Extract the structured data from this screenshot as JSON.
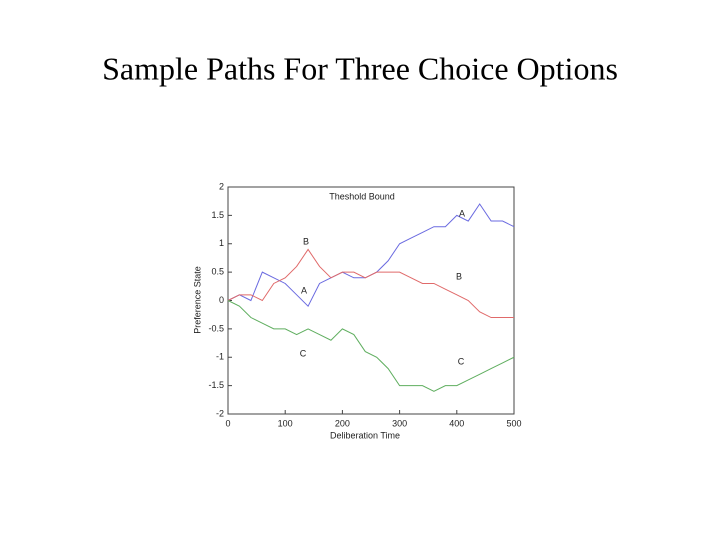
{
  "chart_data": {
    "type": "line",
    "title": "Sample Paths For Three Choice Options",
    "xlabel": "Deliberation Time",
    "ylabel": "Preference State",
    "annotations": [
      "Theshold  Bound",
      "A",
      "B",
      "A",
      "B",
      "C",
      "C"
    ],
    "x": [
      0,
      20,
      40,
      60,
      80,
      100,
      120,
      140,
      160,
      180,
      200,
      220,
      240,
      260,
      280,
      300,
      320,
      340,
      360,
      380,
      400,
      420,
      440,
      460,
      480,
      500
    ],
    "series": [
      {
        "name": "A",
        "color": "#6a6ae0",
        "values": [
          0,
          0.1,
          0.0,
          0.5,
          0.4,
          0.3,
          0.1,
          -0.1,
          0.3,
          0.4,
          0.5,
          0.4,
          0.4,
          0.5,
          0.7,
          1.0,
          1.1,
          1.2,
          1.3,
          1.3,
          1.5,
          1.4,
          1.7,
          1.4,
          1.4,
          1.3
        ]
      },
      {
        "name": "B",
        "color": "#e06a6a",
        "values": [
          0,
          0.1,
          0.1,
          0.0,
          0.3,
          0.4,
          0.6,
          0.9,
          0.6,
          0.4,
          0.5,
          0.5,
          0.4,
          0.5,
          0.5,
          0.5,
          0.4,
          0.3,
          0.3,
          0.2,
          0.1,
          0.0,
          -0.2,
          -0.3,
          -0.3,
          -0.3
        ]
      },
      {
        "name": "C",
        "color": "#5fae5f",
        "values": [
          0,
          -0.1,
          -0.3,
          -0.4,
          -0.5,
          -0.5,
          -0.6,
          -0.5,
          -0.6,
          -0.7,
          -0.5,
          -0.6,
          -0.9,
          -1.0,
          -1.2,
          -1.5,
          -1.5,
          -1.5,
          -1.6,
          -1.5,
          -1.5,
          -1.4,
          -1.3,
          -1.2,
          -1.1,
          -1.0
        ]
      }
    ],
    "xlim": [
      0,
      500
    ],
    "xticks": [
      0,
      100,
      200,
      300,
      400,
      500
    ],
    "ylim": [
      -2,
      2
    ],
    "yticks": [
      -2,
      -1.5,
      -1,
      -0.5,
      0,
      0.5,
      1,
      1.5,
      2
    ],
    "grid": false
  }
}
